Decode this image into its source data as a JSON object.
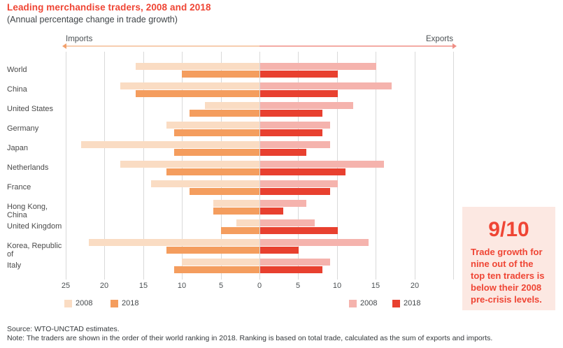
{
  "header": {
    "title": "Leading merchandise traders, 2008 and 2018",
    "subtitle": "(Annual percentage change in trade growth)"
  },
  "axis": {
    "imports_label": "Imports",
    "exports_label": "Exports"
  },
  "legend": {
    "imports": [
      {
        "label": "2008",
        "color": "#fadcc3"
      },
      {
        "label": "2018",
        "color": "#f49d5e"
      }
    ],
    "exports": [
      {
        "label": "2008",
        "color": "#f5b3ad"
      },
      {
        "label": "2018",
        "color": "#e8402f"
      }
    ]
  },
  "callout": {
    "headline": "9/10",
    "body": "Trade growth for nine out of the top ten traders is below their 2008 pre-crisis levels."
  },
  "footer": {
    "source": "Source: WTO-UNCTAD estimates.",
    "note": "Note: The traders are shown in the order of their world ranking in 2018. Ranking is based on total trade, calculated as the sum of exports and imports."
  },
  "colors": {
    "title_red": "#ef4534",
    "callout_bg": "#fce8e2",
    "gridline": "#d9d9d9",
    "arrow_imports_half": "#f7cdb0",
    "arrow_exports_half": "#f3aba4",
    "import_2008": "#fadcc3",
    "import_2018": "#f49d5e",
    "export_2008": "#f5b3ad",
    "export_2018": "#e8402f"
  },
  "chart_data": {
    "type": "bar",
    "variant": "diverging horizontal back-to-back bars: imports grow left, exports grow right",
    "title": "Leading merchandise traders, 2008 and 2018",
    "subtitle": "(Annual percentage change in trade growth)",
    "categories": [
      "World",
      "China",
      "United States",
      "Germany",
      "Japan",
      "Netherlands",
      "France",
      "Hong Kong, China",
      "United Kingdom",
      "Korea, Republic of",
      "Italy"
    ],
    "series": [
      {
        "name": "Imports 2008",
        "side": "imports",
        "color": "#fadcc3",
        "values": [
          16,
          18,
          7,
          12,
          23,
          18,
          14,
          6,
          3,
          22,
          10
        ]
      },
      {
        "name": "Imports 2018",
        "side": "imports",
        "color": "#f49d5e",
        "values": [
          10,
          16,
          9,
          11,
          11,
          12,
          9,
          6,
          5,
          12,
          11
        ]
      },
      {
        "name": "Exports 2008",
        "side": "exports",
        "color": "#f5b3ad",
        "values": [
          15,
          17,
          12,
          9,
          9,
          16,
          10,
          6,
          7,
          14,
          9
        ]
      },
      {
        "name": "Exports 2018",
        "side": "exports",
        "color": "#e8402f",
        "values": [
          10,
          10,
          8,
          8,
          6,
          11,
          9,
          3,
          10,
          5,
          8
        ]
      }
    ],
    "x_tick_labels": [
      "25",
      "20",
      "15",
      "10",
      "5",
      "0",
      "5",
      "10",
      "15",
      "20"
    ],
    "xlim": [
      -25,
      25
    ],
    "grid": true,
    "legend_position": "bottom, imports legend left / exports legend right"
  }
}
